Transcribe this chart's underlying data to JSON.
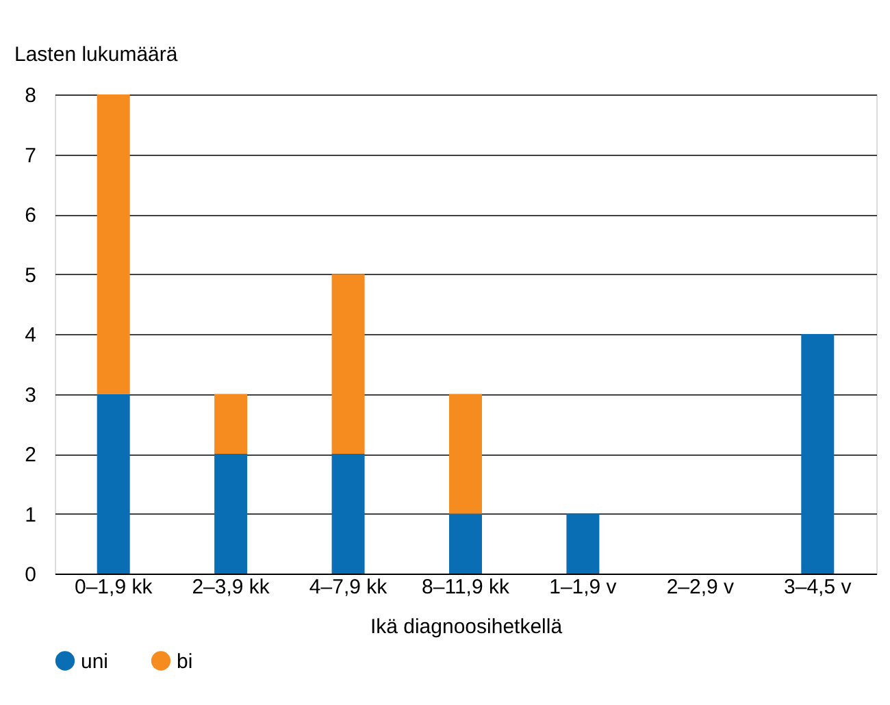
{
  "chart_data": {
    "type": "bar",
    "stacked": true,
    "ylabel": "Lasten lukumäärä",
    "xlabel": "Ikä diagnoosihetkellä",
    "categories": [
      "0–1,9 kk",
      "2–3,9 kk",
      "4–7,9 kk",
      "8–11,9 kk",
      "1–1,9 v",
      "2–2,9 v",
      "3–4,5 v"
    ],
    "series": [
      {
        "name": "uni",
        "color": "#0a6eb4",
        "values": [
          3,
          2,
          2,
          1,
          1,
          0,
          4
        ]
      },
      {
        "name": "bi",
        "color": "#f68b1f",
        "values": [
          5,
          1,
          3,
          2,
          0,
          0,
          0
        ]
      }
    ],
    "ylim": [
      0,
      8
    ],
    "yticks": [
      0,
      1,
      2,
      3,
      4,
      5,
      6,
      7,
      8
    ],
    "grid": "y",
    "legend": "bottom left"
  }
}
